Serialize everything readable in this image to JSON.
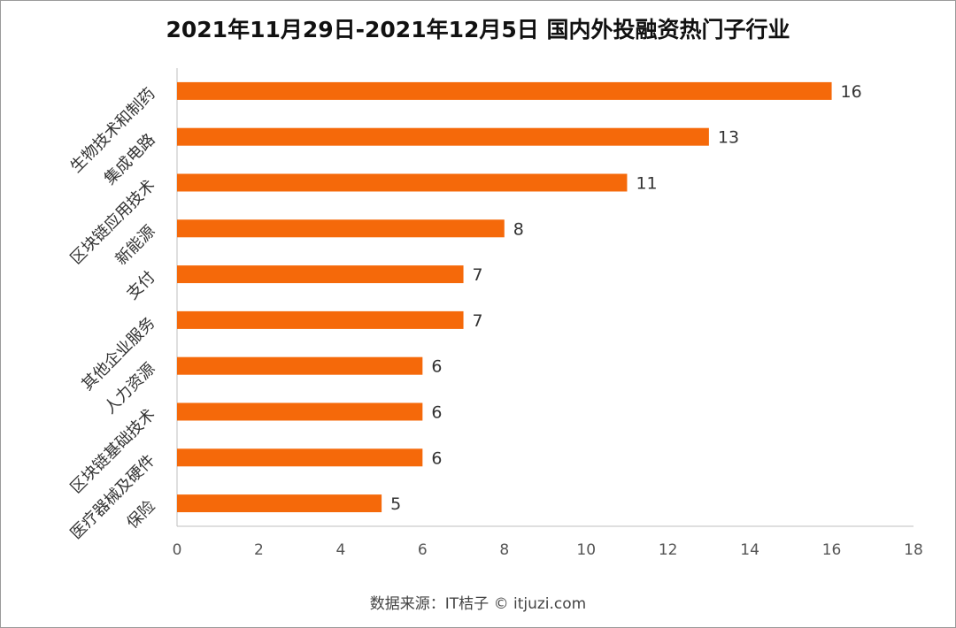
{
  "chart_data": {
    "type": "bar",
    "orientation": "horizontal",
    "title": "2021年11月29日-2021年12月5日 国内外投融资热门子行业",
    "categories": [
      "生物技术和制药",
      "集成电路",
      "区块链应用技术",
      "新能源",
      "支付",
      "其他企业服务",
      "人力资源",
      "区块链基础技术",
      "医疗器械及硬件",
      "保险"
    ],
    "values": [
      16,
      13,
      11,
      8,
      7,
      7,
      6,
      6,
      6,
      5
    ],
    "xlim": [
      0,
      18
    ],
    "xticks": [
      0,
      2,
      4,
      6,
      8,
      10,
      12,
      14,
      16,
      18
    ],
    "bar_color": "#F5690A",
    "xlabel": "",
    "ylabel": ""
  },
  "source_text": "数据来源：IT桔子 © itjuzi.com"
}
